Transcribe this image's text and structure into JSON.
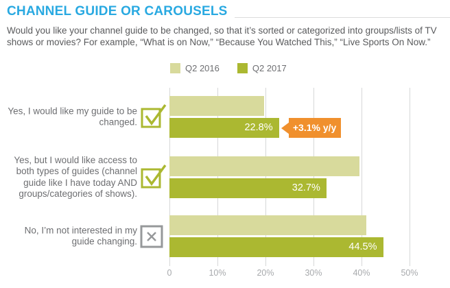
{
  "header": {
    "title": "CHANNEL GUIDE OR CAROUSELS"
  },
  "intro": "Would you like your channel guide to be changed, so that it’s sorted or categorized into groups/lists of TV shows or movies?  For example, “What is on Now,” “Because You Watched This,” “Live Sports On Now.”",
  "legend": {
    "items": [
      {
        "label": "Q2 2016",
        "color": "#d8da9c"
      },
      {
        "label": "Q2 2017",
        "color": "#abb831"
      }
    ]
  },
  "chart_data": {
    "type": "bar",
    "orientation": "horizontal",
    "title": "CHANNEL GUIDE OR CAROUSELS",
    "categories": [
      "Yes, I would like my guide to be changed.",
      "Yes, but I would like access to both types of guides (channel guide like I have today AND groups/categories of shows).",
      "No, I’m not interested in my guide changing."
    ],
    "category_icons": [
      "checkbox-checked-icon",
      "checkbox-checked-icon",
      "checkbox-x-icon"
    ],
    "series": [
      {
        "name": "Q2 2016",
        "color": "#d8da9c",
        "values": [
          19.7,
          39.5,
          41.0
        ],
        "value_labels": [
          "",
          "",
          ""
        ]
      },
      {
        "name": "Q2 2017",
        "color": "#abb831",
        "values": [
          22.8,
          32.7,
          44.5
        ],
        "value_labels": [
          "22.8%",
          "32.7%",
          "44.5%"
        ]
      }
    ],
    "xlim": [
      0,
      50
    ],
    "x_ticks": [
      "0",
      "10%",
      "20%",
      "30%",
      "40%",
      "50%"
    ],
    "x_tick_values": [
      0,
      10,
      20,
      30,
      40,
      50
    ],
    "grid": "vertical",
    "legend_position": "top",
    "annotation": {
      "group_index": 0,
      "series_index": 1,
      "text": "+3.1% y/y",
      "color": "#f0902d"
    }
  },
  "colors": {
    "title_blue": "#29a9e1",
    "body_text": "#595a5c",
    "category_text": "#6d6e71",
    "tick_text": "#a7a9ac",
    "gridline": "#d6d7d8",
    "check_icon_green": "#abb831",
    "x_icon_gray": "#96989a",
    "annotation_orange": "#f0902d"
  }
}
